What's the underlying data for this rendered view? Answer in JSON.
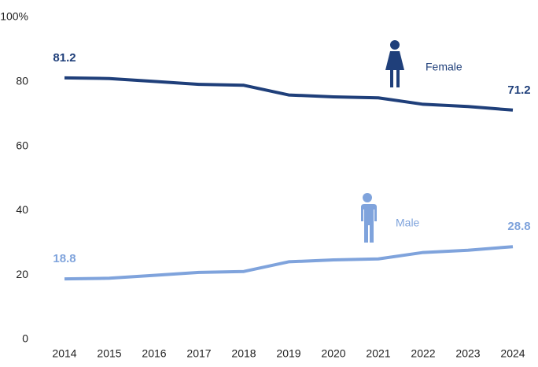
{
  "chart_data": {
    "type": "line",
    "x": [
      2014,
      2015,
      2016,
      2017,
      2018,
      2019,
      2020,
      2021,
      2022,
      2023,
      2024
    ],
    "series": [
      {
        "name": "Female",
        "color": "#1f3f7a",
        "values": [
          81.2,
          81.0,
          80.1,
          79.2,
          78.9,
          75.9,
          75.3,
          75.0,
          73.0,
          72.3,
          71.2
        ]
      },
      {
        "name": "Male",
        "color": "#7fa3dc",
        "values": [
          18.8,
          19.0,
          19.9,
          20.8,
          21.1,
          24.1,
          24.7,
          25.0,
          27.0,
          27.7,
          28.8
        ]
      }
    ],
    "xlim": [
      2014,
      2024
    ],
    "ylim": [
      0,
      100
    ],
    "yticks": [
      0,
      20,
      40,
      60,
      80,
      {
        "value": 100,
        "label": "100%"
      }
    ],
    "grid": false
  }
}
